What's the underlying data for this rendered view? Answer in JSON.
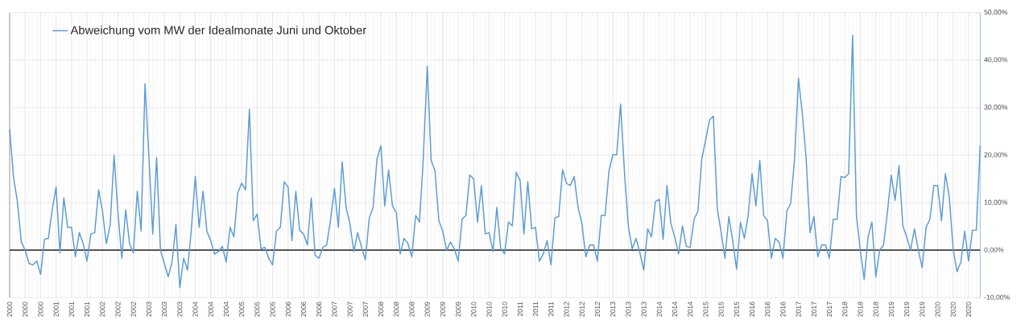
{
  "chart_data": {
    "type": "line",
    "categories": [
      "2000",
      null,
      null,
      null,
      "2000",
      null,
      null,
      null,
      "2000",
      null,
      null,
      null,
      "2001",
      null,
      null,
      null,
      "2001",
      null,
      null,
      null,
      "2001",
      null,
      null,
      null,
      "2002",
      null,
      null,
      null,
      "2002",
      null,
      null,
      null,
      "2002",
      null,
      null,
      null,
      "2003",
      null,
      null,
      null,
      "2003",
      null,
      null,
      null,
      "2003",
      null,
      null,
      null,
      "2004",
      null,
      null,
      null,
      "2004",
      null,
      null,
      null,
      "2004",
      null,
      null,
      null,
      "2005",
      null,
      null,
      null,
      "2005",
      null,
      null,
      null,
      "2005",
      null,
      null,
      null,
      "2006",
      null,
      null,
      null,
      "2006",
      null,
      null,
      null,
      "2006",
      null,
      null,
      null,
      "2007",
      null,
      null,
      null,
      "2007",
      null,
      null,
      null,
      "2007",
      null,
      null,
      null,
      "2008",
      null,
      null,
      null,
      "2008",
      null,
      null,
      null,
      "2008",
      null,
      null,
      null,
      "2009",
      null,
      null,
      null,
      "2009",
      null,
      null,
      null,
      "2009",
      null,
      null,
      null,
      "2010",
      null,
      null,
      null,
      "2010",
      null,
      null,
      null,
      "2010",
      null,
      null,
      null,
      "2011",
      null,
      null,
      null,
      "2011",
      null,
      null,
      null,
      "2011",
      null,
      null,
      null,
      "2012",
      null,
      null,
      null,
      "2012",
      null,
      null,
      null,
      "2012",
      null,
      null,
      null,
      "2013",
      null,
      null,
      null,
      "2013",
      null,
      null,
      null,
      "2013",
      null,
      null,
      null,
      "2014",
      null,
      null,
      null,
      "2014",
      null,
      null,
      null,
      "2014",
      null,
      null,
      null,
      "2015",
      null,
      null,
      null,
      "2015",
      null,
      null,
      null,
      "2015",
      null,
      null,
      null,
      "2016",
      null,
      null,
      null,
      "2016",
      null,
      null,
      null,
      "2016",
      null,
      null,
      null,
      "2017",
      null,
      null,
      null,
      "2017",
      null,
      null,
      null,
      "2017",
      null,
      null,
      null,
      "2018",
      null,
      null,
      null,
      "2018",
      null,
      null,
      null,
      "2018",
      null,
      null,
      null,
      "2019",
      null,
      null,
      null,
      "2019",
      null,
      null,
      null,
      "2019",
      null,
      null,
      null,
      "2020",
      null,
      null,
      null,
      "2020",
      null,
      null,
      null,
      "2020",
      null,
      null,
      null
    ],
    "series": [
      {
        "name": "Abweichung vom MW der Idealmonate Juni und Oktober",
        "color": "#5b9bd5",
        "values": [
          25.4,
          15.3,
          10.2,
          1.7,
          0,
          -2.8,
          -3.1,
          -2.3,
          -5.1,
          2.3,
          2.5,
          8.5,
          13.3,
          -0.6,
          11,
          4.8,
          4.8,
          -1.4,
          3.7,
          1.4,
          -2.3,
          3.4,
          3.7,
          12.7,
          8.2,
          1.4,
          5.4,
          20,
          7.9,
          -1.7,
          8.5,
          1.4,
          -0.6,
          12.4,
          4,
          35,
          19.8,
          3.4,
          19.5,
          0,
          -2.8,
          -5.6,
          -2.5,
          5.4,
          -7.9,
          -1.7,
          -4.2,
          4.5,
          15.5,
          4.8,
          12.4,
          4,
          2,
          -0.8,
          -0.3,
          0.8,
          -2.5,
          4.8,
          2.8,
          12.1,
          14.1,
          12.7,
          29.7,
          6.2,
          7.6,
          0.3,
          0.6,
          -1.7,
          -3.1,
          4,
          4.8,
          14.4,
          13.3,
          2,
          12.4,
          4.2,
          3.4,
          1.1,
          11,
          -1.1,
          -1.7,
          0.6,
          1.1,
          6.5,
          13,
          4.8,
          18.6,
          9,
          5.6,
          -0.3,
          3.7,
          0.6,
          -2,
          6.8,
          9,
          19.2,
          22,
          9.3,
          16.9,
          9.3,
          7.9,
          -0.8,
          2.5,
          1.4,
          -1.4,
          7.3,
          5.9,
          19.8,
          38.7,
          18.9,
          16.7,
          6.2,
          4,
          0,
          1.7,
          0.3,
          -2.3,
          6.5,
          7.3,
          15.8,
          15,
          5.9,
          13.6,
          3.4,
          3.7,
          -0.3,
          9,
          0.3,
          -0.8,
          5.9,
          5.1,
          16.4,
          14.7,
          3.4,
          14.4,
          4.5,
          4.8,
          -2.3,
          -0.8,
          2,
          -3.1,
          6.8,
          7.1,
          16.9,
          14.1,
          13.6,
          15.5,
          9,
          5.6,
          -1.4,
          1.1,
          1.1,
          -2.3,
          7.3,
          7.3,
          16.7,
          20.1,
          20.1,
          30.8,
          16.4,
          5.1,
          0.3,
          2.5,
          -0.6,
          -4.2,
          4.5,
          2.8,
          10.2,
          10.7,
          2.3,
          13.6,
          5.6,
          2.8,
          -0.8,
          5.1,
          0.8,
          0.6,
          6.5,
          8.2,
          19.2,
          23.2,
          27.4,
          28.2,
          8.8,
          3.7,
          -1.7,
          7.1,
          2,
          -4,
          5.9,
          2.5,
          7.3,
          16.1,
          9.3,
          18.9,
          7.3,
          6.2,
          -1.7,
          2.5,
          1.7,
          -1.7,
          8.2,
          9.9,
          19.2,
          36.2,
          28.8,
          19.2,
          3.7,
          7.1,
          -1.4,
          1.1,
          1.1,
          -1.7,
          6.5,
          6.5,
          15.5,
          15.3,
          16.1,
          45.2,
          7.3,
          0,
          -6.2,
          2.8,
          5.9,
          -5.6,
          0,
          1.1,
          7.9,
          15.8,
          10.5,
          17.8,
          5.1,
          2.8,
          0,
          4.5,
          0,
          -3.7,
          4.8,
          6.5,
          13.6,
          13.6,
          6.2,
          16.1,
          11.3,
          0.3,
          -4.5,
          -2.5,
          4,
          -2.3,
          4.2,
          4.2,
          22
        ]
      }
    ],
    "ylim": [
      -10,
      50
    ],
    "yticks": [
      {
        "value": -10,
        "label": "-10,00%"
      },
      {
        "value": 0,
        "label": "0,00%"
      },
      {
        "value": 10,
        "label": "10,00%"
      },
      {
        "value": 20,
        "label": "20,00%"
      },
      {
        "value": 30,
        "label": "30,00%"
      },
      {
        "value": 40,
        "label": "40,00%"
      },
      {
        "value": 50,
        "label": "50,00%"
      }
    ],
    "grid": true,
    "legend": "top left",
    "marker": "none",
    "line_style": "solid"
  }
}
